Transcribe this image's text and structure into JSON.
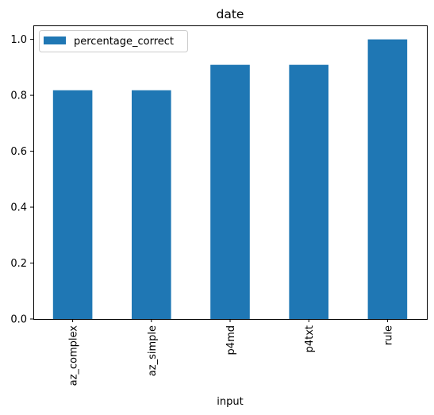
{
  "chart_data": {
    "type": "bar",
    "title": "date",
    "xlabel": "input",
    "ylabel": "",
    "categories": [
      "az_complex",
      "az_simple",
      "p4md",
      "p4txt",
      "rule"
    ],
    "series": [
      {
        "name": "percentage_correct",
        "values": [
          0.818,
          0.818,
          0.909,
          0.909,
          1.0
        ]
      }
    ],
    "ylim": [
      0,
      1.05
    ],
    "yticks": [
      "0.0",
      "0.2",
      "0.4",
      "0.6",
      "0.8",
      "1.0"
    ],
    "bar_color": "#1f77b4",
    "legend_position": "upper-left",
    "grid": false,
    "x_tick_rotation": "vertical"
  }
}
